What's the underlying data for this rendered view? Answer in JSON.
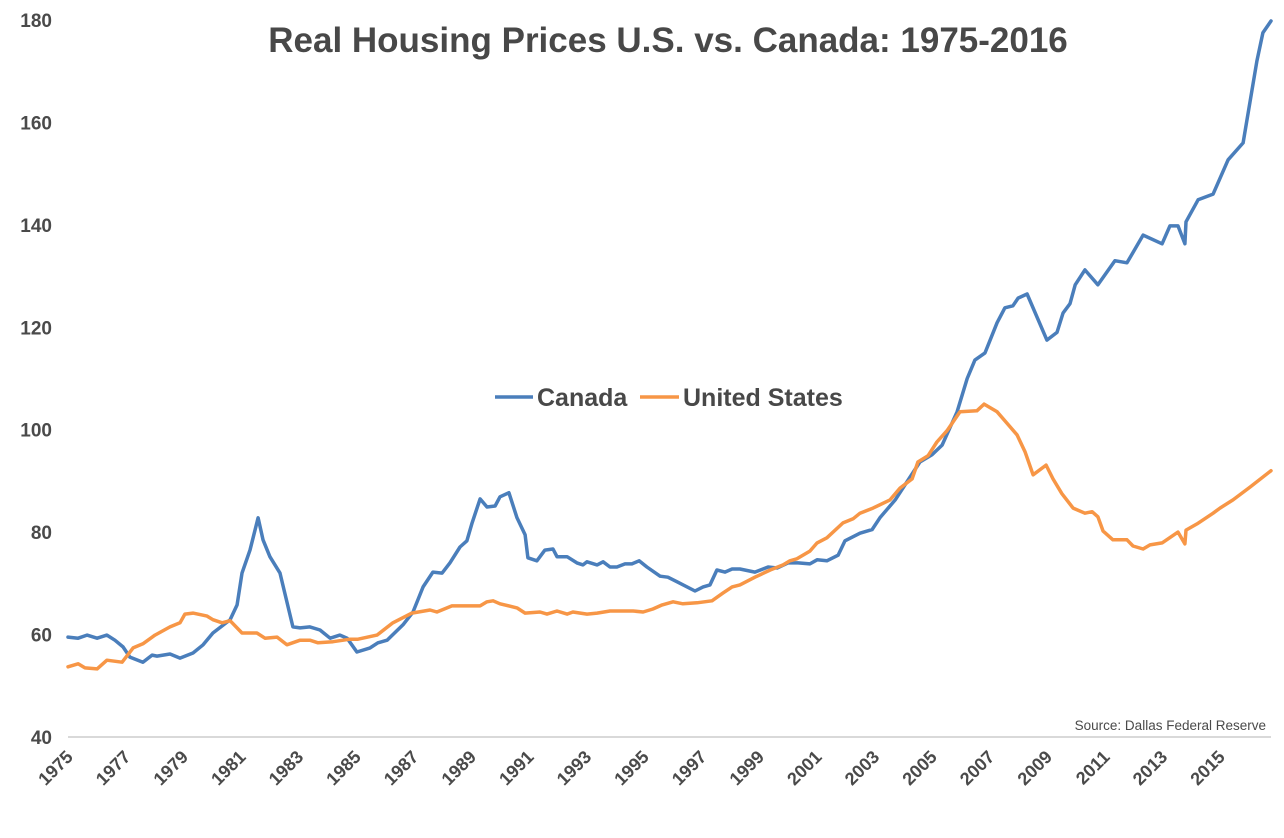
{
  "chart_data": {
    "type": "line",
    "title": "Real Housing Prices U.S. vs. Canada: 1975-2016",
    "xlabel": "",
    "ylabel": "",
    "xlim": [
      1975,
      2016.77
    ],
    "ylim": [
      40,
      180
    ],
    "yticks": [
      40,
      60,
      80,
      100,
      120,
      140,
      160,
      180
    ],
    "xticks": [
      "1975",
      "1977",
      "1979",
      "1981",
      "1983",
      "1985",
      "1987",
      "1989",
      "1991",
      "1993",
      "1995",
      "1997",
      "1999",
      "2001",
      "2003",
      "2005",
      "2007",
      "2009",
      "2011",
      "2013",
      "2015"
    ],
    "grid": false,
    "legend_placement": "center",
    "source": "Source: Dallas Federal Reserve",
    "series": [
      {
        "name": "Canada",
        "color": "#4A7EBB",
        "points": [
          [
            1975.0,
            59.5
          ],
          [
            1975.35,
            59.3
          ],
          [
            1975.66,
            59.9
          ],
          [
            1976.01,
            59.3
          ],
          [
            1976.35,
            59.9
          ],
          [
            1976.63,
            58.9
          ],
          [
            1976.91,
            57.6
          ],
          [
            1977.15,
            55.6
          ],
          [
            1977.6,
            54.6
          ],
          [
            1977.92,
            56.0
          ],
          [
            1978.09,
            55.8
          ],
          [
            1978.54,
            56.2
          ],
          [
            1978.89,
            55.4
          ],
          [
            1979.34,
            56.4
          ],
          [
            1979.69,
            58.0
          ],
          [
            1980.03,
            60.3
          ],
          [
            1980.63,
            62.9
          ],
          [
            1980.87,
            65.8
          ],
          [
            1981.04,
            72.0
          ],
          [
            1981.32,
            76.5
          ],
          [
            1981.6,
            82.8
          ],
          [
            1981.77,
            78.5
          ],
          [
            1982.01,
            75.2
          ],
          [
            1982.36,
            72.0
          ],
          [
            1982.81,
            61.5
          ],
          [
            1983.06,
            61.3
          ],
          [
            1983.4,
            61.5
          ],
          [
            1983.75,
            60.9
          ],
          [
            1984.1,
            59.3
          ],
          [
            1984.44,
            59.9
          ],
          [
            1984.69,
            59.3
          ],
          [
            1985.03,
            56.6
          ],
          [
            1985.49,
            57.4
          ],
          [
            1985.76,
            58.4
          ],
          [
            1986.08,
            58.9
          ],
          [
            1986.63,
            61.9
          ],
          [
            1986.98,
            64.4
          ],
          [
            1987.33,
            69.3
          ],
          [
            1987.67,
            72.2
          ],
          [
            1987.99,
            72.0
          ],
          [
            1988.26,
            74.0
          ],
          [
            1988.61,
            77.1
          ],
          [
            1988.85,
            78.3
          ],
          [
            1989.03,
            81.8
          ],
          [
            1989.31,
            86.5
          ],
          [
            1989.55,
            84.9
          ],
          [
            1989.83,
            85.1
          ],
          [
            1990.0,
            86.9
          ],
          [
            1990.31,
            87.7
          ],
          [
            1990.59,
            82.8
          ],
          [
            1990.87,
            79.5
          ],
          [
            1990.97,
            75.0
          ],
          [
            1991.28,
            74.4
          ],
          [
            1991.56,
            76.5
          ],
          [
            1991.84,
            76.7
          ],
          [
            1991.98,
            75.2
          ],
          [
            1992.33,
            75.2
          ],
          [
            1992.67,
            74.0
          ],
          [
            1992.88,
            73.6
          ],
          [
            1993.02,
            74.2
          ],
          [
            1993.37,
            73.6
          ],
          [
            1993.58,
            74.2
          ],
          [
            1993.82,
            73.2
          ],
          [
            1994.06,
            73.2
          ],
          [
            1994.34,
            73.8
          ],
          [
            1994.58,
            73.8
          ],
          [
            1994.83,
            74.4
          ],
          [
            1995.1,
            73.2
          ],
          [
            1995.56,
            71.4
          ],
          [
            1995.83,
            71.2
          ],
          [
            1996.15,
            70.3
          ],
          [
            1996.77,
            68.5
          ],
          [
            1997.05,
            69.3
          ],
          [
            1997.29,
            69.7
          ],
          [
            1997.53,
            72.6
          ],
          [
            1997.81,
            72.2
          ],
          [
            1998.06,
            72.8
          ],
          [
            1998.33,
            72.8
          ],
          [
            1998.85,
            72.2
          ],
          [
            1999.31,
            73.2
          ],
          [
            1999.62,
            73.0
          ],
          [
            2000.0,
            74.0
          ],
          [
            2000.35,
            74.0
          ],
          [
            2000.76,
            73.8
          ],
          [
            2001.01,
            74.6
          ],
          [
            2001.35,
            74.4
          ],
          [
            2001.74,
            75.5
          ],
          [
            2001.98,
            78.3
          ],
          [
            2002.5,
            79.8
          ],
          [
            2002.92,
            80.5
          ],
          [
            2003.19,
            82.8
          ],
          [
            2003.72,
            86.3
          ],
          [
            2004.06,
            89.2
          ],
          [
            2004.58,
            93.7
          ],
          [
            2005.0,
            95.1
          ],
          [
            2005.35,
            97.0
          ],
          [
            2005.87,
            103.5
          ],
          [
            2006.22,
            110.0
          ],
          [
            2006.49,
            113.6
          ],
          [
            2006.84,
            115.0
          ],
          [
            2007.26,
            120.9
          ],
          [
            2007.53,
            123.8
          ],
          [
            2007.81,
            124.2
          ],
          [
            2007.99,
            125.7
          ],
          [
            2008.3,
            126.5
          ],
          [
            2008.99,
            117.5
          ],
          [
            2009.34,
            119.0
          ],
          [
            2009.55,
            122.8
          ],
          [
            2009.79,
            124.6
          ],
          [
            2009.97,
            128.3
          ],
          [
            2010.31,
            131.2
          ],
          [
            2010.76,
            128.3
          ],
          [
            2011.35,
            133.0
          ],
          [
            2011.77,
            132.6
          ],
          [
            2012.33,
            138.0
          ],
          [
            2012.99,
            136.3
          ],
          [
            2013.26,
            139.8
          ],
          [
            2013.54,
            139.8
          ],
          [
            2013.78,
            136.3
          ],
          [
            2013.82,
            140.6
          ],
          [
            2014.24,
            144.9
          ],
          [
            2014.76,
            146.0
          ],
          [
            2015.28,
            152.7
          ],
          [
            2015.8,
            156.0
          ],
          [
            2016.28,
            172.0
          ],
          [
            2016.49,
            177.5
          ],
          [
            2016.77,
            179.8
          ]
        ]
      },
      {
        "name": "United States",
        "color": "#F79646",
        "points": [
          [
            1975.0,
            53.7
          ],
          [
            1975.35,
            54.3
          ],
          [
            1975.59,
            53.5
          ],
          [
            1976.01,
            53.3
          ],
          [
            1976.35,
            55.0
          ],
          [
            1976.88,
            54.6
          ],
          [
            1977.26,
            57.4
          ],
          [
            1977.6,
            58.2
          ],
          [
            1978.02,
            59.9
          ],
          [
            1978.54,
            61.5
          ],
          [
            1978.89,
            62.3
          ],
          [
            1979.06,
            64.0
          ],
          [
            1979.34,
            64.2
          ],
          [
            1979.83,
            63.6
          ],
          [
            1980.03,
            62.9
          ],
          [
            1980.35,
            62.3
          ],
          [
            1980.63,
            62.7
          ],
          [
            1981.04,
            60.3
          ],
          [
            1981.56,
            60.3
          ],
          [
            1981.84,
            59.3
          ],
          [
            1982.26,
            59.5
          ],
          [
            1982.6,
            58.0
          ],
          [
            1983.06,
            58.9
          ],
          [
            1983.4,
            58.9
          ],
          [
            1983.68,
            58.4
          ],
          [
            1984.2,
            58.6
          ],
          [
            1984.79,
            59.1
          ],
          [
            1985.07,
            59.1
          ],
          [
            1985.73,
            59.9
          ],
          [
            1986.28,
            62.3
          ],
          [
            1986.94,
            64.2
          ],
          [
            1987.57,
            64.8
          ],
          [
            1987.81,
            64.4
          ],
          [
            1988.33,
            65.6
          ],
          [
            1989.31,
            65.6
          ],
          [
            1989.55,
            66.4
          ],
          [
            1989.76,
            66.6
          ],
          [
            1990.0,
            66.0
          ],
          [
            1990.59,
            65.2
          ],
          [
            1990.87,
            64.2
          ],
          [
            1991.39,
            64.4
          ],
          [
            1991.63,
            64.0
          ],
          [
            1991.98,
            64.6
          ],
          [
            1992.33,
            64.0
          ],
          [
            1992.53,
            64.4
          ],
          [
            1993.02,
            64.0
          ],
          [
            1993.37,
            64.2
          ],
          [
            1993.82,
            64.6
          ],
          [
            1994.62,
            64.6
          ],
          [
            1994.97,
            64.4
          ],
          [
            1995.31,
            65.0
          ],
          [
            1995.63,
            65.8
          ],
          [
            1996.01,
            66.4
          ],
          [
            1996.35,
            66.0
          ],
          [
            1996.84,
            66.2
          ],
          [
            1997.36,
            66.6
          ],
          [
            1997.74,
            68.1
          ],
          [
            1998.06,
            69.3
          ],
          [
            1998.33,
            69.7
          ],
          [
            1998.85,
            71.2
          ],
          [
            1999.38,
            72.6
          ],
          [
            1999.83,
            73.6
          ],
          [
            2000.07,
            74.4
          ],
          [
            2000.31,
            74.8
          ],
          [
            2000.76,
            76.3
          ],
          [
            2001.01,
            77.9
          ],
          [
            2001.35,
            78.9
          ],
          [
            2001.91,
            81.8
          ],
          [
            2002.26,
            82.6
          ],
          [
            2002.5,
            83.7
          ],
          [
            2002.95,
            84.7
          ],
          [
            2003.54,
            86.3
          ],
          [
            2003.89,
            88.6
          ],
          [
            2004.31,
            90.4
          ],
          [
            2004.51,
            93.7
          ],
          [
            2004.86,
            94.9
          ],
          [
            2005.17,
            97.6
          ],
          [
            2005.52,
            99.8
          ],
          [
            2005.97,
            103.5
          ],
          [
            2006.56,
            103.7
          ],
          [
            2006.81,
            105.0
          ],
          [
            2007.26,
            103.5
          ],
          [
            2007.6,
            101.3
          ],
          [
            2007.95,
            99.0
          ],
          [
            2008.23,
            95.7
          ],
          [
            2008.51,
            91.2
          ],
          [
            2008.96,
            93.1
          ],
          [
            2009.2,
            90.4
          ],
          [
            2009.51,
            87.5
          ],
          [
            2009.9,
            84.7
          ],
          [
            2010.31,
            83.7
          ],
          [
            2010.56,
            84.0
          ],
          [
            2010.76,
            83.0
          ],
          [
            2010.94,
            80.2
          ],
          [
            2011.28,
            78.5
          ],
          [
            2011.77,
            78.5
          ],
          [
            2011.98,
            77.3
          ],
          [
            2012.33,
            76.7
          ],
          [
            2012.57,
            77.5
          ],
          [
            2012.99,
            77.9
          ],
          [
            2013.54,
            80.0
          ],
          [
            2013.78,
            77.7
          ],
          [
            2013.82,
            80.4
          ],
          [
            2014.2,
            81.6
          ],
          [
            2014.76,
            83.7
          ],
          [
            2015.0,
            84.7
          ],
          [
            2015.45,
            86.3
          ],
          [
            2016.04,
            88.8
          ],
          [
            2016.77,
            92.0
          ]
        ]
      }
    ]
  }
}
